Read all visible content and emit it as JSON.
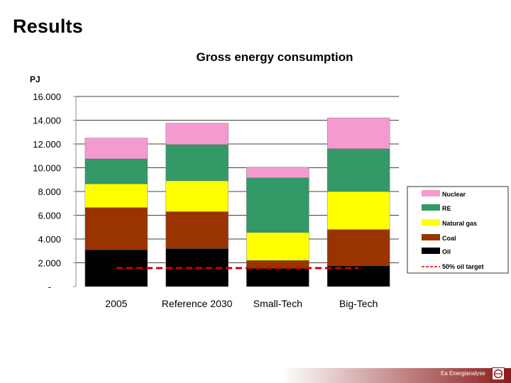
{
  "slide": {
    "title": "Results",
    "brand": "Ea Energianalyse"
  },
  "colors": {
    "Nuclear": "#f59ad0",
    "RE": "#339966",
    "Natural gas": "#ffff00",
    "Coal": "#993300",
    "Oil": "#000000",
    "target": "#cc0000",
    "brand": "#8b1a1a"
  },
  "chart_data": {
    "type": "bar",
    "stacked": true,
    "title": "Gross energy consumption",
    "ylabel": "PJ",
    "xlabel": "",
    "ylim": [
      0,
      16000
    ],
    "yticks": [
      0,
      2000,
      4000,
      6000,
      8000,
      10000,
      12000,
      14000,
      16000
    ],
    "ytick_labels": [
      "-",
      "2.000",
      "4.000",
      "6.000",
      "8.000",
      "10.000",
      "12.000",
      "14.000",
      "16.000"
    ],
    "grid": true,
    "legend_position": "right",
    "categories": [
      "2005",
      "Reference 2030",
      "Small-Tech",
      "Big-Tech"
    ],
    "series": [
      {
        "name": "Oil",
        "values": [
          3100,
          3200,
          1550,
          1750
        ]
      },
      {
        "name": "Coal",
        "values": [
          3550,
          3100,
          650,
          3050
        ]
      },
      {
        "name": "Natural gas",
        "values": [
          2000,
          2600,
          2350,
          3200
        ]
      },
      {
        "name": "RE",
        "values": [
          2100,
          3050,
          4600,
          3600
        ]
      },
      {
        "name": "Nuclear",
        "values": [
          1750,
          1800,
          900,
          2600
        ]
      }
    ],
    "legend_order": [
      "Nuclear",
      "RE",
      "Natural gas",
      "Coal",
      "Oil"
    ],
    "target_line": {
      "name": "50% oil target",
      "value": 1550
    }
  }
}
